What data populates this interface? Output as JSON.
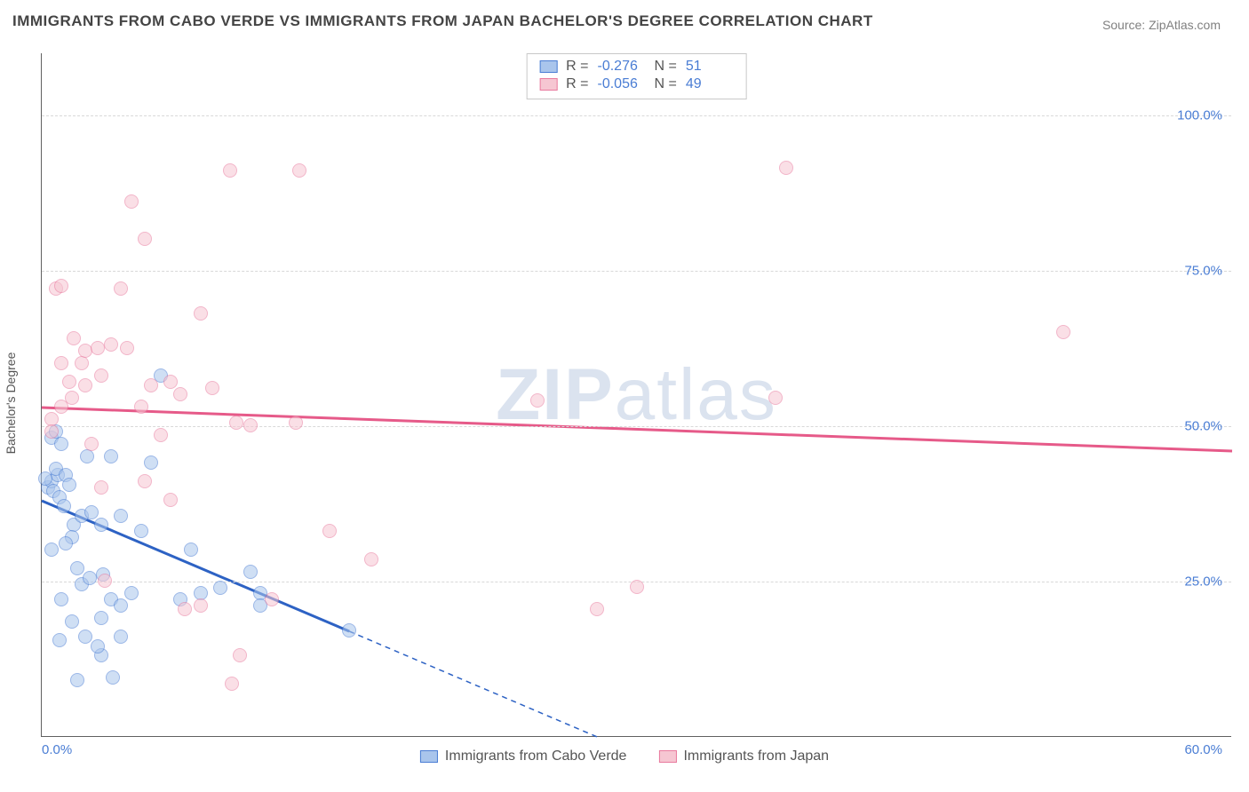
{
  "title": "IMMIGRANTS FROM CABO VERDE VS IMMIGRANTS FROM JAPAN BACHELOR'S DEGREE CORRELATION CHART",
  "source": "Source: ZipAtlas.com",
  "watermark": "ZIPatlas",
  "ylabel": "Bachelor's Degree",
  "chart": {
    "type": "scatter",
    "xlim": [
      0,
      60
    ],
    "ylim": [
      0,
      110
    ],
    "xticks": [
      {
        "v": 0,
        "label": "0.0%"
      },
      {
        "v": 60,
        "label": "60.0%"
      }
    ],
    "yticks": [
      {
        "v": 25,
        "label": "25.0%"
      },
      {
        "v": 50,
        "label": "50.0%"
      },
      {
        "v": 75,
        "label": "75.0%"
      },
      {
        "v": 100,
        "label": "100.0%"
      }
    ],
    "background": "#ffffff",
    "grid_color": "#d8d8d8",
    "axis_color": "#606060",
    "tick_label_color": "#4a7dd4",
    "label_fontsize": 14,
    "tick_fontsize": 15,
    "marker_radius": 8,
    "marker_opacity": 0.55,
    "series": [
      {
        "name": "Immigrants from Cabo Verde",
        "fill": "#a9c5ec",
        "stroke": "#4a7dd4",
        "line_color": "#2d62c4",
        "R": "-0.276",
        "N": "51",
        "trend": {
          "x1": 0,
          "y1": 38,
          "x2": 15.5,
          "y2": 17,
          "ext_x2": 28,
          "ext_y2": 0
        },
        "points": [
          [
            0.3,
            40
          ],
          [
            0.5,
            41
          ],
          [
            0.6,
            39.5
          ],
          [
            0.8,
            42
          ],
          [
            0.9,
            38.5
          ],
          [
            0.5,
            48
          ],
          [
            0.7,
            49
          ],
          [
            1.0,
            47
          ],
          [
            0.7,
            43
          ],
          [
            1.2,
            42
          ],
          [
            1.4,
            40.5
          ],
          [
            0.2,
            41.5
          ],
          [
            1.1,
            37
          ],
          [
            1.6,
            34
          ],
          [
            2.0,
            35.5
          ],
          [
            1.5,
            32
          ],
          [
            0.5,
            30
          ],
          [
            2.5,
            36
          ],
          [
            3.0,
            34
          ],
          [
            2.3,
            45
          ],
          [
            3.5,
            45
          ],
          [
            5.5,
            44
          ],
          [
            6.0,
            58
          ],
          [
            4.0,
            35.5
          ],
          [
            5.0,
            33
          ],
          [
            7.5,
            30
          ],
          [
            8.0,
            23
          ],
          [
            9.0,
            23.8
          ],
          [
            7.0,
            22
          ],
          [
            10.5,
            26.5
          ],
          [
            11.0,
            23
          ],
          [
            1.0,
            22
          ],
          [
            2.0,
            24.5
          ],
          [
            2.4,
            25.5
          ],
          [
            3.5,
            22
          ],
          [
            3.0,
            19
          ],
          [
            1.5,
            18.5
          ],
          [
            2.2,
            16
          ],
          [
            3.0,
            13
          ],
          [
            4.0,
            16
          ],
          [
            4.0,
            21
          ],
          [
            4.5,
            23
          ],
          [
            1.8,
            27
          ],
          [
            1.8,
            9
          ],
          [
            3.6,
            9.5
          ],
          [
            0.9,
            15.5
          ],
          [
            11.0,
            21
          ],
          [
            15.5,
            17
          ],
          [
            2.8,
            14.5
          ],
          [
            3.1,
            26
          ],
          [
            1.2,
            31
          ]
        ]
      },
      {
        "name": "Immigrants from Japan",
        "fill": "#f6c6d2",
        "stroke": "#e97a9e",
        "line_color": "#e65a89",
        "R": "-0.056",
        "N": "49",
        "trend": {
          "x1": 0,
          "y1": 53,
          "x2": 60,
          "y2": 46
        },
        "points": [
          [
            0.5,
            51
          ],
          [
            0.5,
            49
          ],
          [
            1.0,
            53
          ],
          [
            1.5,
            54.5
          ],
          [
            2.0,
            60
          ],
          [
            2.2,
            62
          ],
          [
            1.4,
            57
          ],
          [
            0.7,
            72
          ],
          [
            1.0,
            72.5
          ],
          [
            2.8,
            62.5
          ],
          [
            3.5,
            63
          ],
          [
            4.3,
            62.5
          ],
          [
            5.5,
            56.5
          ],
          [
            6.5,
            57
          ],
          [
            4.0,
            72
          ],
          [
            5.2,
            80
          ],
          [
            8.0,
            68
          ],
          [
            4.5,
            86
          ],
          [
            9.5,
            91
          ],
          [
            13.0,
            91
          ],
          [
            5.0,
            53
          ],
          [
            7.0,
            55
          ],
          [
            9.8,
            50.5
          ],
          [
            12.8,
            50.5
          ],
          [
            3.0,
            40
          ],
          [
            5.2,
            41
          ],
          [
            6.5,
            38
          ],
          [
            7.2,
            20.5
          ],
          [
            8.0,
            21
          ],
          [
            9.6,
            8.5
          ],
          [
            10.0,
            13
          ],
          [
            11.6,
            22
          ],
          [
            14.5,
            33
          ],
          [
            16.6,
            28.5
          ],
          [
            25.0,
            54
          ],
          [
            28.0,
            20.5
          ],
          [
            30.0,
            24
          ],
          [
            37.0,
            54.5
          ],
          [
            37.5,
            91.5
          ],
          [
            51.5,
            65
          ],
          [
            3.2,
            25
          ],
          [
            2.5,
            47
          ],
          [
            2.2,
            56.5
          ],
          [
            3.0,
            58
          ],
          [
            10.5,
            50
          ],
          [
            6.0,
            48.5
          ],
          [
            8.6,
            56
          ],
          [
            1.6,
            64
          ],
          [
            1.0,
            60
          ]
        ]
      }
    ]
  },
  "bottom_legend": [
    {
      "label": "Immigrants from Cabo Verde",
      "fill": "#a9c5ec",
      "stroke": "#4a7dd4"
    },
    {
      "label": "Immigrants from Japan",
      "fill": "#f6c6d2",
      "stroke": "#e97a9e"
    }
  ]
}
